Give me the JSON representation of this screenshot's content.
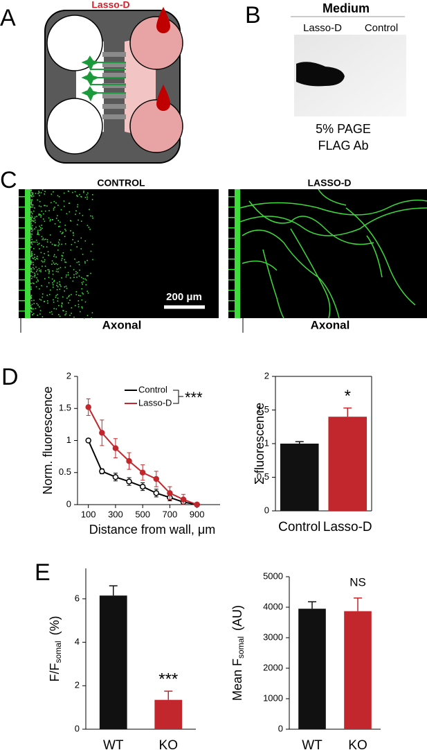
{
  "panel_labels": [
    "A",
    "B",
    "C",
    "D",
    "E"
  ],
  "diagram": {
    "label": "Lasso-D"
  },
  "blot": {
    "title": "Medium",
    "lanes": [
      "Lasso-D",
      "Control"
    ],
    "caption": [
      "5% PAGE",
      "FLAG Ab"
    ]
  },
  "images": {
    "titles": [
      "CONTROL",
      "LASSO-D"
    ],
    "scale_bar": "200 μm",
    "xlabels": [
      "Axonal",
      "Axonal"
    ]
  },
  "chart_data": [
    {
      "type": "line",
      "x": [
        100,
        200,
        300,
        400,
        500,
        600,
        700,
        800,
        900
      ],
      "series": [
        {
          "name": "Control",
          "color": "#000000",
          "marker": "open",
          "values": [
            1.0,
            0.52,
            0.43,
            0.36,
            0.28,
            0.18,
            0.11,
            0.04,
            0.0
          ],
          "errors": [
            0.03,
            0.04,
            0.06,
            0.06,
            0.06,
            0.06,
            0.05,
            0.04,
            0.02
          ]
        },
        {
          "name": "Lasso-D",
          "color": "#c1272d",
          "marker": "filled",
          "values": [
            1.52,
            1.12,
            0.88,
            0.68,
            0.5,
            0.4,
            0.18,
            0.08,
            0.0
          ],
          "errors": [
            0.13,
            0.2,
            0.15,
            0.13,
            0.12,
            0.12,
            0.1,
            0.08,
            0.03
          ]
        }
      ],
      "xlim": [
        20,
        1070
      ],
      "xticks": [
        100,
        300,
        500,
        700,
        900
      ],
      "ylim": [
        0,
        2
      ],
      "yticks": [
        0,
        0.5,
        1,
        1.5,
        2
      ],
      "xlabel": "Distance from wall, μm",
      "ylabel": "Norm. fluorescence",
      "annotation": "***"
    },
    {
      "type": "bar",
      "categories": [
        "Control",
        "Lasso-D"
      ],
      "values": [
        1.0,
        1.4
      ],
      "errors": [
        0.03,
        0.13
      ],
      "colors": [
        "#111111",
        "#c1272d"
      ],
      "ylim": [
        0,
        2
      ],
      "yticks": [
        0,
        0.5,
        1,
        1.5,
        2
      ],
      "ylabel": "Σ fluorescence",
      "annotations": [
        {
          "text": "*",
          "category": "Lasso-D"
        }
      ]
    },
    {
      "type": "bar",
      "categories": [
        "WT",
        "KO"
      ],
      "values": [
        6.15,
        1.35
      ],
      "errors": [
        0.45,
        0.4
      ],
      "colors": [
        "#111111",
        "#c1272d"
      ],
      "ylim": [
        0,
        7.4
      ],
      "yticks": [
        0,
        2,
        4,
        6
      ],
      "ylabel": "F/F",
      "ylabel_subscript": "somal",
      "ylabel_unit": "(%)",
      "annotations": [
        {
          "text": "***",
          "category": "KO"
        }
      ]
    },
    {
      "type": "bar",
      "categories": [
        "WT",
        "KO"
      ],
      "values": [
        3950,
        3870
      ],
      "errors": [
        230,
        430
      ],
      "colors": [
        "#111111",
        "#c1272d"
      ],
      "ylim": [
        0,
        5000
      ],
      "yticks": [
        0,
        1000,
        2000,
        3000,
        4000,
        5000
      ],
      "ylabel": "Mean F",
      "ylabel_subscript": "somal",
      "ylabel_unit": "(AU)",
      "annotations": [
        {
          "text": "NS",
          "category": "KO"
        }
      ]
    }
  ]
}
